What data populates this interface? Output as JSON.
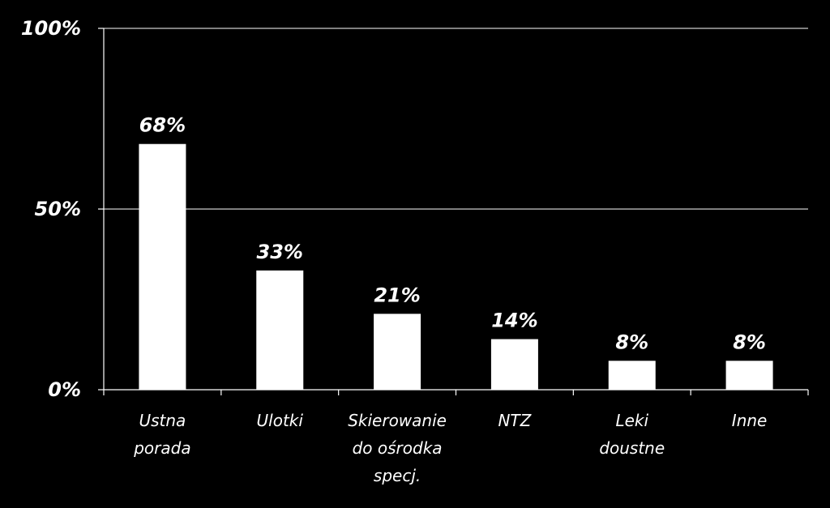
{
  "chart_data": {
    "type": "bar",
    "categories": [
      [
        "Ustna",
        "porada"
      ],
      [
        "Ulotki"
      ],
      [
        "Skierowanie",
        "do ośrodka",
        "specj."
      ],
      [
        "NTZ"
      ],
      [
        "Leki",
        "doustne"
      ],
      [
        "Inne"
      ]
    ],
    "values": [
      68,
      33,
      21,
      14,
      8,
      8
    ],
    "data_labels": [
      "68%",
      "33%",
      "21%",
      "14%",
      "8%",
      "8%"
    ],
    "ylim": [
      0,
      100
    ],
    "yticks": [
      0,
      50,
      100
    ],
    "ytick_labels": [
      "0%",
      "50%",
      "100%"
    ],
    "grid": true,
    "title": "",
    "xlabel": "",
    "ylabel": ""
  },
  "colors": {
    "background": "#000000",
    "bar": "#ffffff",
    "axis": "#ffffff",
    "grid": "#ffffff",
    "text": "#ffffff"
  }
}
